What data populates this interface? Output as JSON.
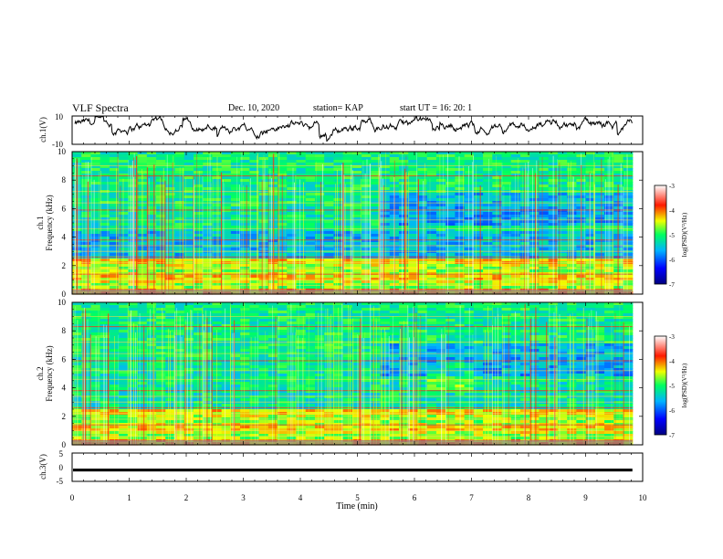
{
  "header": {
    "title": "VLF Spectra",
    "date": "Dec. 10, 2020",
    "station": "station= KAP",
    "start": "start  UT =   16: 20: 1"
  },
  "chart_data": [
    {
      "type": "line",
      "panel": "ch1-waveform",
      "ylabel": "ch.1(V)",
      "ylim": [
        -10,
        10
      ],
      "yticks": [
        "10",
        "-10"
      ],
      "xlim": [
        0,
        10
      ],
      "note": "noisy waveform roughly between -8 and 8 V"
    },
    {
      "type": "heatmap",
      "panel": "ch1-spectrogram",
      "ylabel": "ch.1",
      "ylabel2": "Frequency (kHz)",
      "ylim": [
        0,
        10
      ],
      "yticks": [
        "0",
        "2",
        "4",
        "6",
        "8",
        "10"
      ],
      "xlim": [
        0,
        10
      ],
      "colorbar": {
        "label": "log(PSD)(V²/Hz)",
        "ticks": [
          "-3",
          "-4",
          "-5",
          "-6",
          "-7"
        ],
        "range": [
          -7,
          -3
        ]
      }
    },
    {
      "type": "heatmap",
      "panel": "ch2-spectrogram",
      "ylabel": "ch.2",
      "ylabel2": "Frequency (kHz)",
      "ylim": [
        0,
        10
      ],
      "yticks": [
        "0",
        "2",
        "4",
        "6",
        "8",
        "10"
      ],
      "xlim": [
        0,
        10
      ],
      "colorbar": {
        "label": "log(PSD)(V²/Hz)",
        "ticks": [
          "-3",
          "-4",
          "-5",
          "-6",
          "-7"
        ],
        "range": [
          -7,
          -3
        ]
      }
    },
    {
      "type": "line",
      "panel": "ch3-waveform",
      "ylabel": "ch.3(V)",
      "ylim": [
        -5,
        5
      ],
      "yticks": [
        "5",
        "0",
        "-5"
      ],
      "xlim": [
        0,
        10
      ],
      "values_note": "flat thick line near -1 V"
    }
  ],
  "xaxis": {
    "label": "Time  (min)",
    "ticks": [
      "0",
      "1",
      "2",
      "3",
      "4",
      "5",
      "6",
      "7",
      "8",
      "9",
      "10"
    ],
    "range": [
      0,
      10
    ],
    "data_end": 9.82
  }
}
